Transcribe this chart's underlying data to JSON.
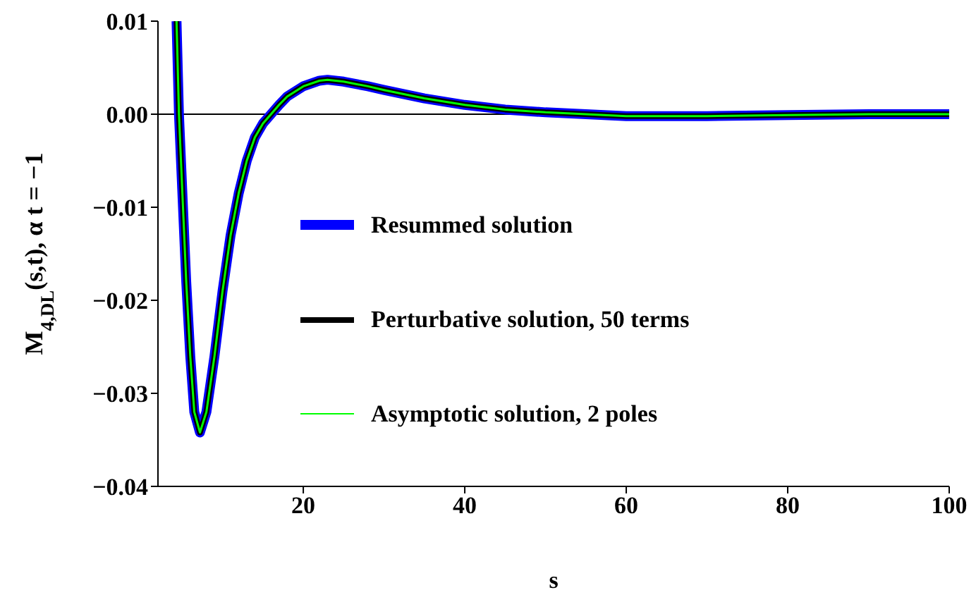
{
  "chart_data": {
    "type": "line",
    "xlabel": "s",
    "ylabel": "M$_{4,DL}$(s,t),  α t = −1",
    "x": [
      4.3,
      4.6,
      5,
      5.5,
      6,
      6.5,
      7.2,
      8,
      9,
      10,
      11,
      12,
      13,
      14,
      15,
      16,
      17,
      18,
      20,
      22,
      23,
      25,
      28,
      30,
      35,
      40,
      45,
      50,
      55,
      60,
      70,
      80,
      90,
      100
    ],
    "series": [
      {
        "name": "Resummed solution",
        "color": "#0000ff",
        "values": [
          0.01,
          0,
          -0.008,
          -0.018,
          -0.026,
          -0.032,
          -0.0342,
          -0.032,
          -0.026,
          -0.019,
          -0.013,
          -0.0085,
          -0.005,
          -0.0025,
          -0.001,
          0,
          0.001,
          0.0019,
          0.003,
          0.0036,
          0.0037,
          0.0035,
          0.003,
          0.0026,
          0.0017,
          0.001,
          0.0005,
          0.0002,
          0,
          -0.0002,
          -0.0002,
          -0.0001,
          0,
          0
        ]
      },
      {
        "name": "Perturbative solution, 50 terms",
        "color": "#000000",
        "values": [
          0.01,
          0,
          -0.008,
          -0.018,
          -0.026,
          -0.032,
          -0.0342,
          -0.032,
          -0.026,
          -0.019,
          -0.013,
          -0.0085,
          -0.005,
          -0.0025,
          -0.001,
          0,
          0.001,
          0.0019,
          0.003,
          0.0036,
          0.0037,
          0.0035,
          0.003,
          0.0026,
          0.0017,
          0.001,
          0.0005,
          0.0002,
          0,
          -0.0002,
          -0.0002,
          -0.0001,
          0,
          0
        ]
      },
      {
        "name": "Asymptotic solution, 2 poles",
        "color": "#00ff00",
        "values": [
          0.01,
          0,
          -0.008,
          -0.018,
          -0.026,
          -0.032,
          -0.0342,
          -0.032,
          -0.026,
          -0.019,
          -0.013,
          -0.0085,
          -0.005,
          -0.0025,
          -0.001,
          0,
          0.001,
          0.0019,
          0.003,
          0.0036,
          0.0037,
          0.0035,
          0.003,
          0.0026,
          0.0017,
          0.001,
          0.0005,
          0.0002,
          0,
          -0.0002,
          -0.0002,
          -0.0001,
          0,
          0
        ]
      }
    ],
    "xlim": [
      2,
      100
    ],
    "xticks": [
      20,
      40,
      60,
      80,
      100
    ],
    "ylim": [
      -0.04,
      0.01
    ],
    "yticks": [
      {
        "value": -0.04,
        "label": "−0.04"
      },
      {
        "value": -0.03,
        "label": "−0.03"
      },
      {
        "value": -0.02,
        "label": "−0.02"
      },
      {
        "value": -0.01,
        "label": "−0.01"
      },
      {
        "value": 0,
        "label": "0.00"
      },
      {
        "value": 0.01,
        "label": "0.01"
      }
    ],
    "ref_lines": [
      {
        "axis": "y",
        "value": 0,
        "color": "#000000"
      }
    ],
    "legend": "center",
    "marker": "none",
    "line_style": "solid"
  }
}
